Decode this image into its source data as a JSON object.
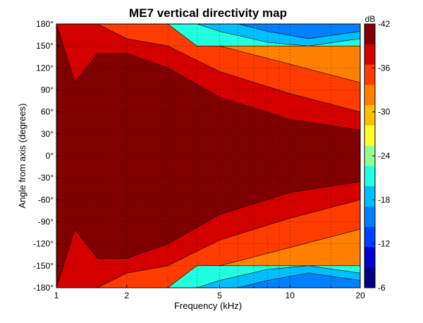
{
  "chart_data": {
    "type": "heatmap",
    "title": "ME7 vertical directivity map",
    "xlabel": "Frequency (kHz)",
    "ylabel": "Angle from axis (degrees)",
    "x_scale": "log",
    "xlim": [
      1,
      20
    ],
    "ylim": [
      -180,
      180
    ],
    "x_ticks": [
      1,
      2,
      5,
      10,
      20
    ],
    "x_tick_labels": [
      "1",
      "2",
      "5",
      "10",
      "20"
    ],
    "y_ticks": [
      180,
      150,
      120,
      90,
      60,
      30,
      0,
      -30,
      -60,
      -90,
      -120,
      -150,
      -180
    ],
    "y_tick_labels": [
      "180°",
      "150°",
      "120°",
      "90°",
      "60°",
      "30°",
      "0°",
      "-30°",
      "-60°",
      "-90°",
      "-120°",
      "-150°",
      "-180°"
    ],
    "grid": true,
    "colorbar": {
      "unit_label": "dB",
      "range": [
        -42,
        -6
      ],
      "ticks": [
        -6,
        -12,
        -18,
        -24,
        -30,
        -36,
        -42
      ],
      "tick_labels": [
        "-6",
        "-12",
        "-18",
        "-24",
        "-30",
        "-36",
        "-42"
      ],
      "levels": [
        -6,
        -9,
        -12,
        -15,
        -18,
        -21,
        -24,
        -27,
        -30,
        -33,
        -36,
        -39,
        -42
      ],
      "colors": [
        "#800000",
        "#d40000",
        "#ff3c00",
        "#ff8000",
        "#ffbf00",
        "#ffff30",
        "#90ff90",
        "#20ffdf",
        "#00bfff",
        "#0080ff",
        "#0040ff",
        "#0000cc",
        "#000080"
      ]
    },
    "contour_boundaries": [
      {
        "level_dB": -9,
        "angles_deg_at_freqs_khz": {
          "1": 180,
          "1.2": 100,
          "1.5": 140,
          "2": 140,
          "3": 120,
          "5": 80,
          "10": 50,
          "20": 35
        }
      },
      {
        "level_dB": -12,
        "angles_deg_at_freqs_khz": {
          "1": 180,
          "1.2": 180,
          "1.5": 180,
          "2": 160,
          "3": 150,
          "5": 115,
          "10": 85,
          "20": 60
        }
      },
      {
        "level_dB": -15,
        "angles_deg_at_freqs_khz": {
          "1": 180,
          "1.2": 180,
          "1.5": 180,
          "2": 180,
          "3": 180,
          "5": 150,
          "10": 125,
          "20": 100
        }
      },
      {
        "level_dB": -21,
        "angles_deg_at_freqs_khz": {
          "1": 180,
          "1.2": 180,
          "1.5": 180,
          "2": 180,
          "3": 180,
          "5": 180,
          "10": 160,
          "20": 150
        }
      }
    ]
  }
}
